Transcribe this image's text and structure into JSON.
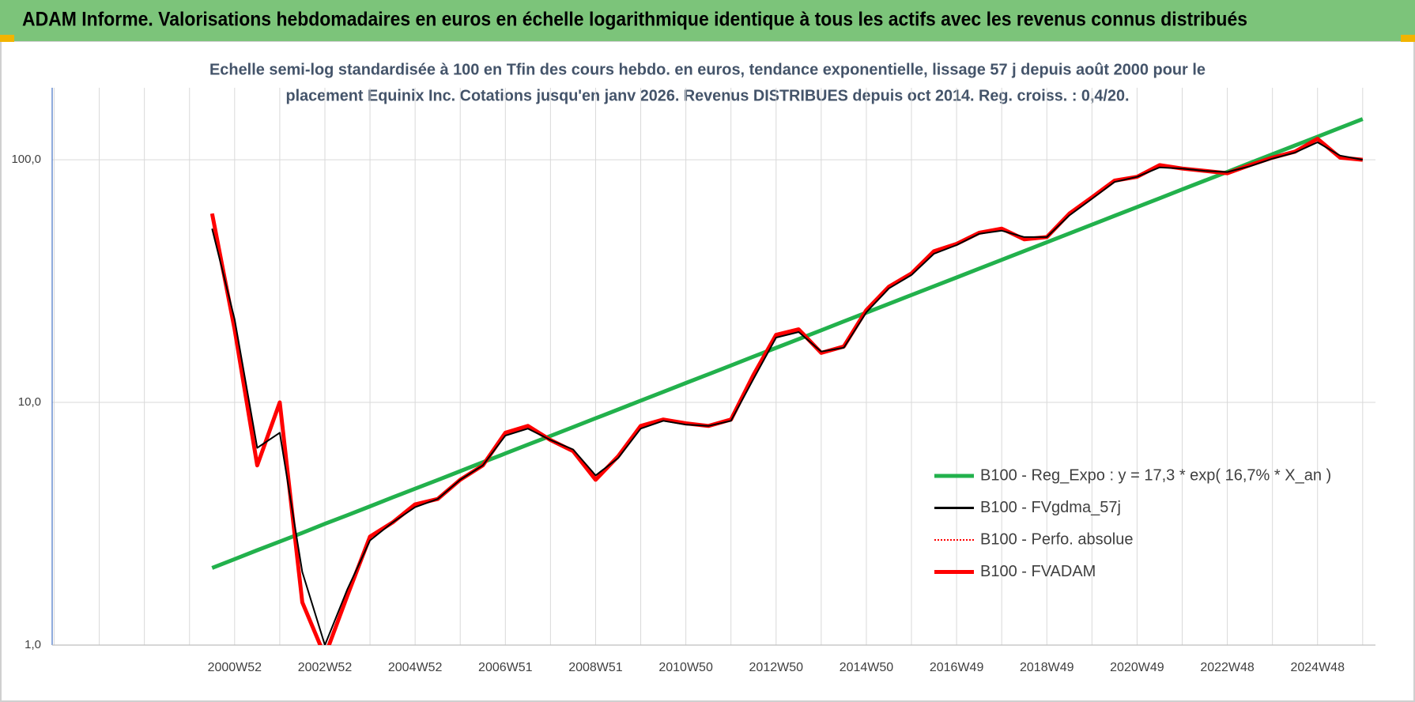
{
  "chart_data": {
    "type": "line",
    "title": "ADAM Informe. Valorisations hebdomadaires en euros en échelle logarithmique identique à tous les actifs avec les revenus connus distribués",
    "subtitle": [
      "Echelle semi-log standardisée à 100 en Tfin des cours hebdo. en euros, tendance exponentielle, lissage 57 j depuis août 2000 pour le",
      "placement Equinix Inc. Cotations jusqu'en janv 2026. Revenus DISTRIBUES depuis oct 2014. Reg. croiss. : 0,4/20."
    ],
    "categories": [
      null,
      null,
      null,
      null,
      null,
      null,
      null,
      null,
      "2000W52",
      null,
      null,
      null,
      "2002W52",
      null,
      null,
      null,
      "2004W52",
      null,
      null,
      null,
      "2006W51",
      null,
      null,
      null,
      "2008W51",
      null,
      null,
      null,
      "2010W50",
      null,
      null,
      null,
      "2012W50",
      null,
      null,
      null,
      "2014W50",
      null,
      null,
      null,
      "2016W49",
      null,
      null,
      null,
      "2018W49",
      null,
      null,
      null,
      "2020W49",
      null,
      null,
      null,
      "2022W48",
      null,
      null,
      null,
      "2024W48",
      null,
      null
    ],
    "log_scale": true,
    "ylim": [
      1,
      198
    ],
    "yticks": [
      {
        "value": 1,
        "label": "1,0"
      },
      {
        "value": 10,
        "label": "10,0"
      },
      {
        "value": 100,
        "label": "100,0"
      }
    ],
    "grid": true,
    "legend": "lower right",
    "series": [
      {
        "name": "B100 - Reg_Expo : y = 17,3 * exp( 16,7% *  X_an )",
        "color": "#22b14c",
        "style": "solid",
        "values": [
          null,
          null,
          null,
          null,
          null,
          null,
          null,
          2.08,
          2.26,
          2.46,
          2.67,
          2.9,
          3.16,
          3.43,
          3.73,
          4.06,
          4.41,
          4.79,
          5.21,
          5.67,
          6.16,
          6.7,
          7.28,
          7.91,
          8.6,
          9.35,
          10.17,
          11.05,
          12.02,
          13.06,
          14.2,
          15.44,
          16.78,
          18.24,
          19.83,
          21.56,
          23.44,
          25.48,
          27.7,
          30.11,
          32.73,
          35.58,
          38.68,
          42.05,
          45.71,
          49.69,
          54.02,
          58.72,
          63.84,
          69.4,
          75.44,
          82.01,
          89.15,
          96.92,
          105.4,
          114.5,
          124.5,
          135.4,
          147.1
        ]
      },
      {
        "name": "B100 - FVgdma_57j",
        "color": "#000000",
        "style": "solid",
        "values": [
          null,
          null,
          null,
          null,
          null,
          null,
          null,
          52,
          22,
          6.5,
          7.5,
          2.0,
          1.0,
          1.7,
          2.7,
          3.2,
          3.7,
          4.0,
          4.8,
          5.5,
          7.3,
          7.8,
          7.0,
          6.4,
          5.0,
          5.9,
          7.8,
          8.4,
          8.1,
          8.0,
          8.4,
          12.5,
          18.5,
          19.5,
          16.2,
          16.8,
          23.5,
          29.5,
          33.5,
          41,
          44.5,
          49.5,
          51,
          48,
          48,
          59,
          69,
          81,
          85,
          93,
          92,
          90,
          89,
          94,
          101,
          107,
          118,
          104,
          100
        ]
      },
      {
        "name": "B100 - Perfo. absolue",
        "color": "#ff0000",
        "style": "dotted",
        "values": [
          null,
          null,
          null,
          null,
          null,
          null,
          null,
          60,
          20,
          5.5,
          10,
          1.5,
          0.9,
          1.6,
          2.8,
          3.2,
          3.8,
          4.0,
          4.8,
          5.5,
          7.5,
          8.0,
          7.0,
          6.3,
          4.8,
          6.0,
          8.0,
          8.5,
          8.2,
          8.0,
          8.5,
          13,
          19,
          20,
          16,
          17,
          24,
          30,
          34,
          42,
          45,
          50,
          52,
          47,
          48,
          60,
          70,
          82,
          85,
          95,
          92,
          90,
          88,
          95,
          102,
          108,
          122,
          102,
          100
        ]
      },
      {
        "name": "B100 - FVADAM",
        "color": "#ff0000",
        "style": "solid",
        "values": [
          null,
          null,
          null,
          null,
          null,
          null,
          null,
          60,
          20,
          5.5,
          10,
          1.5,
          0.9,
          1.6,
          2.8,
          3.2,
          3.8,
          4.0,
          4.8,
          5.5,
          7.5,
          8.0,
          7.0,
          6.3,
          4.8,
          6.0,
          8.0,
          8.5,
          8.2,
          8.0,
          8.5,
          13,
          19,
          20,
          16,
          17,
          24,
          30,
          34,
          42,
          45,
          50,
          52,
          47,
          48,
          60,
          70,
          82,
          85,
          95,
          92,
          90,
          88,
          95,
          102,
          108,
          122,
          102,
          100
        ]
      }
    ]
  }
}
